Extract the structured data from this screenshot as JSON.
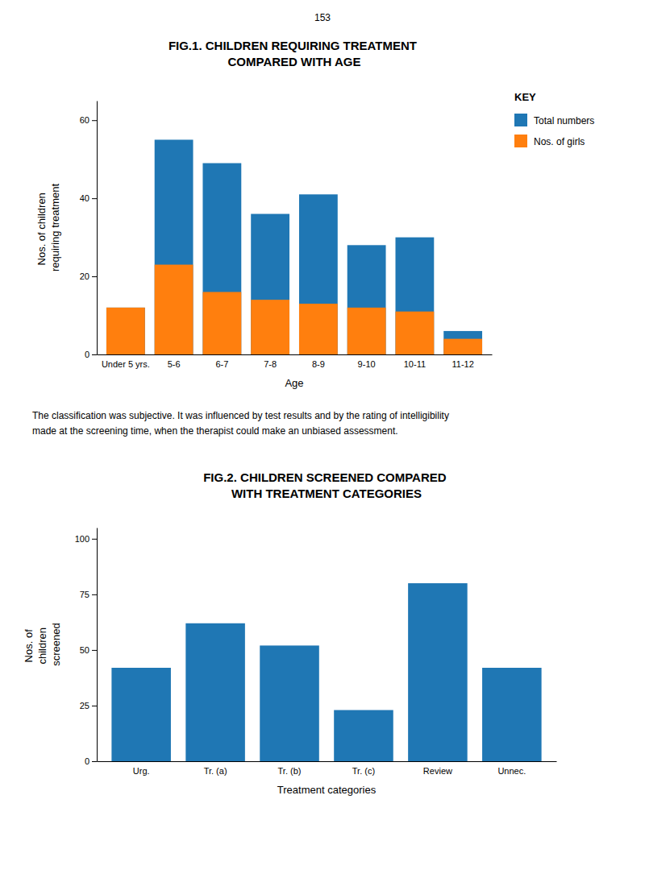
{
  "chart_data": [
    {
      "type": "bar",
      "title": "FIG.1.  CHILDREN REQUIRING TREATMENT\nCOMPARED WITH AGE",
      "categories": [
        "Under 5 yrs.",
        "5-6",
        "6-7",
        "7-8",
        "8-9",
        "9-10",
        "10-11",
        "11-12"
      ],
      "series": [
        {
          "name": "Total numbers",
          "values": [
            12,
            55,
            49,
            36,
            41,
            28,
            30,
            6
          ]
        },
        {
          "name": "Nos. of girls",
          "values": [
            12,
            23,
            16,
            14,
            13,
            12,
            11,
            4
          ]
        }
      ],
      "xlabel": "Age",
      "ylabel": "Nos. of children\nrequiring  treatment",
      "ylim": [
        0,
        65
      ],
      "yticks": [
        0,
        20,
        40,
        60
      ],
      "legend": "upper right",
      "grid": false,
      "annotations": [
        "153",
        "KEY"
      ]
    },
    {
      "type": "bar",
      "title": "FIG.2.  CHILDREN SCREENED COMPARED\nWITH TREATMENT CATEGORIES",
      "categories": [
        "Urg.",
        "Tr. (a)",
        "Tr. (b)",
        "Tr. (c)",
        "Review",
        "Unnec."
      ],
      "values": [
        42,
        62,
        52,
        23,
        80,
        42
      ],
      "xlabel": "Treatment categories",
      "ylabel": "Nos. of\nchildren\nscreened",
      "ylim": [
        0,
        105
      ],
      "yticks": [
        0,
        25,
        50,
        75,
        100
      ],
      "grid": false,
      "annotations": [
        "The classification was subjective. It was influenced by test results and by the rating of intelligibility\nmade at the screening time, when the therapist could make an unbiased assessment."
      ]
    }
  ]
}
